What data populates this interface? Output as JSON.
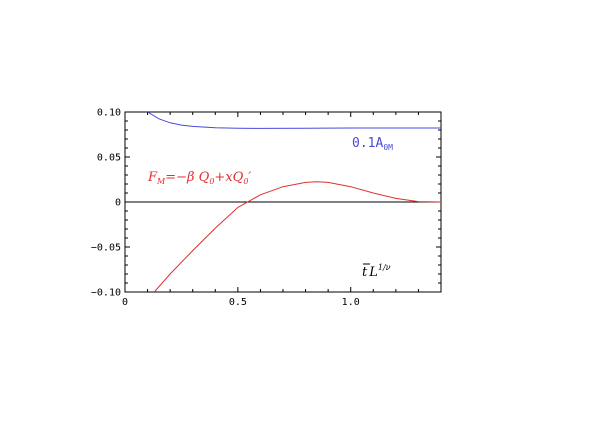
{
  "chart_data": {
    "type": "line",
    "xlim": [
      0,
      1.4
    ],
    "ylim": [
      -0.1,
      0.1
    ],
    "x_ticks": [
      {
        "value": 0,
        "label": "0"
      },
      {
        "value": 0.5,
        "label": "0.5"
      },
      {
        "value": 1.0,
        "label": "1.0"
      }
    ],
    "y_ticks": [
      {
        "value": 0.1,
        "label": "0.10"
      },
      {
        "value": 0.05,
        "label": "0.05"
      },
      {
        "value": 0,
        "label": "0"
      },
      {
        "value": -0.05,
        "label": "−0.05"
      },
      {
        "value": -0.1,
        "label": "−0.10"
      }
    ],
    "zero_line": true,
    "grid": false,
    "series": [
      {
        "name": "0.1A_0M",
        "color": "#4a4ad8",
        "x": [
          0.1,
          0.15,
          0.2,
          0.25,
          0.3,
          0.4,
          0.5,
          0.6,
          0.8,
          1.0,
          1.2,
          1.4
        ],
        "y": [
          0.1,
          0.0925,
          0.088,
          0.0855,
          0.084,
          0.0825,
          0.082,
          0.0818,
          0.082,
          0.0822,
          0.0822,
          0.0822
        ]
      },
      {
        "name": "F_M = −βQ_0 + xQ_0′",
        "color": "#e03030",
        "x": [
          0.13,
          0.2,
          0.3,
          0.4,
          0.5,
          0.6,
          0.7,
          0.8,
          0.85,
          0.9,
          1.0,
          1.1,
          1.2,
          1.3,
          1.4
        ],
        "y": [
          -0.1,
          -0.08,
          -0.054,
          -0.029,
          -0.006,
          0.008,
          0.017,
          0.0218,
          0.0225,
          0.0218,
          0.017,
          0.01,
          0.004,
          0.0005,
          0.0
        ]
      }
    ],
    "annotations": {
      "blue_label": {
        "main": "0.1A",
        "sub": "0M"
      },
      "red_label": {
        "f": "F",
        "sub1": "M",
        "eq": "=−β Q",
        "sub2": "0",
        "mid": "+xQ",
        "sub3": "0",
        "prime": "′"
      },
      "axis_label": {
        "bar_t": "t",
        "L": "L",
        "exp": "1/ν"
      }
    }
  }
}
